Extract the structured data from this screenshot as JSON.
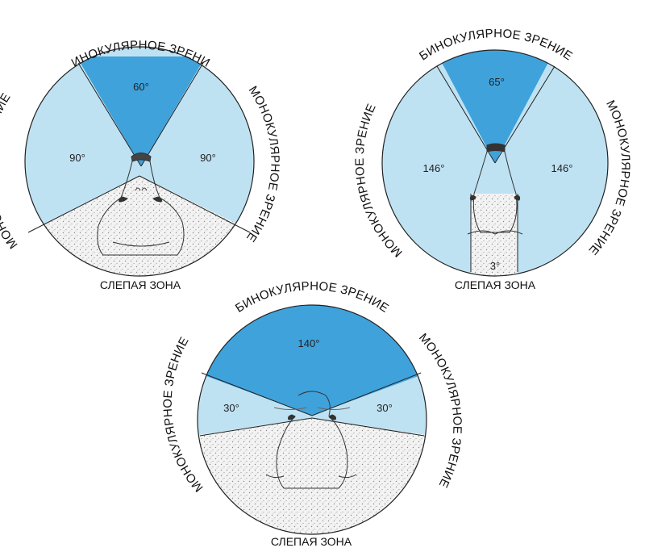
{
  "colors": {
    "binocular": "#3fa2db",
    "monocular": "#bfe2f3",
    "blind": "#f2f2f2",
    "outline": "#222222"
  },
  "labels": {
    "binocular": "БИНОКУЛЯРНОЕ ЗРЕНИЕ",
    "monocular": "МОНОКУЛЯРНОЕ ЗРЕНИЕ",
    "blind": "СЛЕПАЯ ЗОНА"
  },
  "diagrams": [
    {
      "binocular_angle": "60°",
      "monocular_left_angle": "90°",
      "monocular_right_angle": "90°"
    },
    {
      "binocular_angle": "65°",
      "monocular_left_angle": "146°",
      "monocular_right_angle": "146°",
      "blind_angle": "3°"
    },
    {
      "binocular_angle": "140°",
      "monocular_left_angle": "30°",
      "monocular_right_angle": "30°"
    }
  ]
}
